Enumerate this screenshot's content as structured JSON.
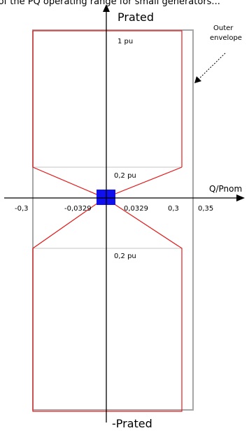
{
  "top_caption": "...of the PQ operating range for small generators...",
  "axes": {
    "y_top_label": "Prated",
    "y_bottom_label": "-Prated",
    "x_label": "Q/Pnom"
  },
  "annotations": {
    "one_pu": "1 pu",
    "upper_point_two_pu": "0,2 pu",
    "lower_point_two_pu": "0,2 pu",
    "outer_envelope_line1": "Outer",
    "outer_envelope_line2": "envelope"
  },
  "x_ticks": {
    "neg_0_3": "-0,3",
    "neg_0_0329": "-0,0329",
    "pos_0_0329": "0,0329",
    "pos_0_3": "0,3",
    "pos_0_35": "0,35"
  },
  "colors": {
    "axis": "#000000",
    "red_boundary": "#e31b1b",
    "grey_envelope": "#a6a6a6",
    "thin_grid": "#8c8c8c",
    "blue_deadband": "#1010ee"
  }
}
